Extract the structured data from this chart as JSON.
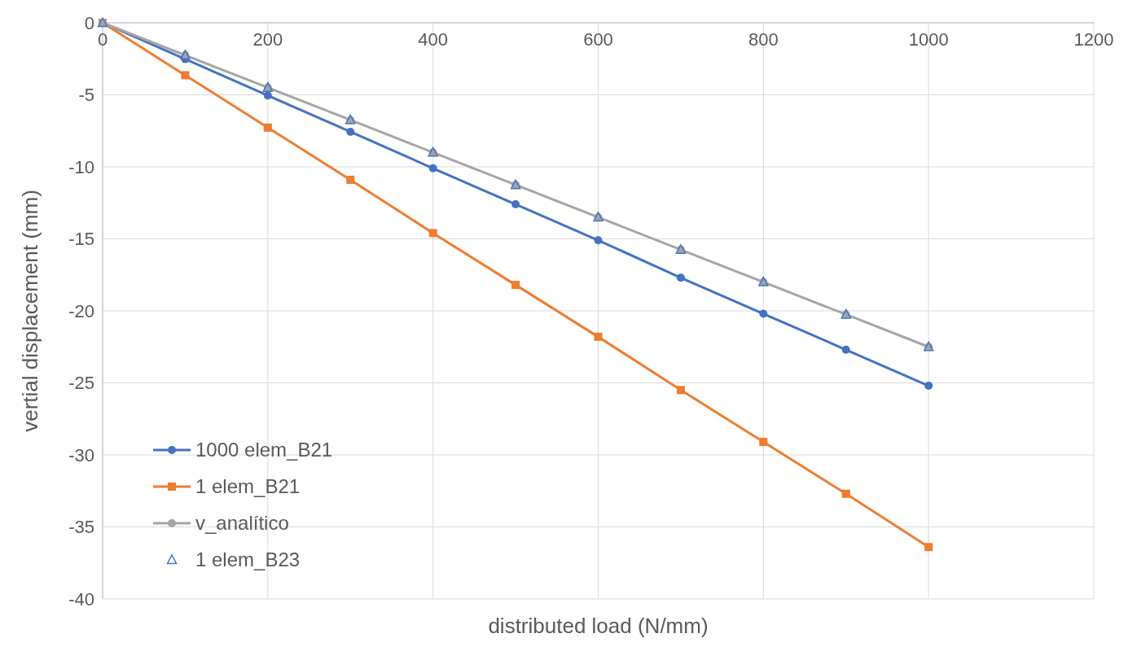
{
  "chart_data": {
    "type": "line",
    "xlabel": "distributed load (N/mm)",
    "ylabel": "vertial displacement (mm)",
    "xlim": [
      0,
      1200
    ],
    "xticks": [
      0,
      200,
      400,
      600,
      800,
      1000,
      1200
    ],
    "ylim": [
      -40,
      0
    ],
    "yticks": [
      -40,
      -35,
      -30,
      -25,
      -20,
      -15,
      -10,
      -5,
      0
    ],
    "grid": true,
    "legend": "bottom left",
    "line_style": "solid",
    "x": [
      0,
      100,
      200,
      300,
      400,
      500,
      600,
      700,
      800,
      900,
      1000
    ],
    "series": [
      {
        "name": "1000 elem_B21",
        "color": "#4472c4",
        "marker": "circle",
        "values": [
          0,
          -2.52,
          -5.05,
          -7.57,
          -10.1,
          -12.6,
          -15.1,
          -17.7,
          -20.2,
          -22.7,
          -25.2
        ]
      },
      {
        "name": "1 elem_B21",
        "color": "#ed7d31",
        "marker": "square",
        "values": [
          0,
          -3.64,
          -7.28,
          -10.9,
          -14.6,
          -18.2,
          -21.8,
          -25.5,
          -29.1,
          -32.7,
          -36.4
        ]
      },
      {
        "name": "v_analítico",
        "color": "#a5a5a5",
        "marker": "circle",
        "values": [
          0,
          -2.25,
          -4.5,
          -6.75,
          -9.0,
          -11.25,
          -13.5,
          -15.75,
          -18.0,
          -20.25,
          -22.5
        ]
      },
      {
        "name": "1 elem_B23",
        "type": "scatter",
        "color": "#4472c4",
        "marker": "triangle",
        "values": [
          0,
          -2.25,
          -4.5,
          -6.75,
          -9.0,
          -11.25,
          -13.5,
          -15.75,
          -18.0,
          -20.25,
          -22.5
        ]
      }
    ]
  }
}
